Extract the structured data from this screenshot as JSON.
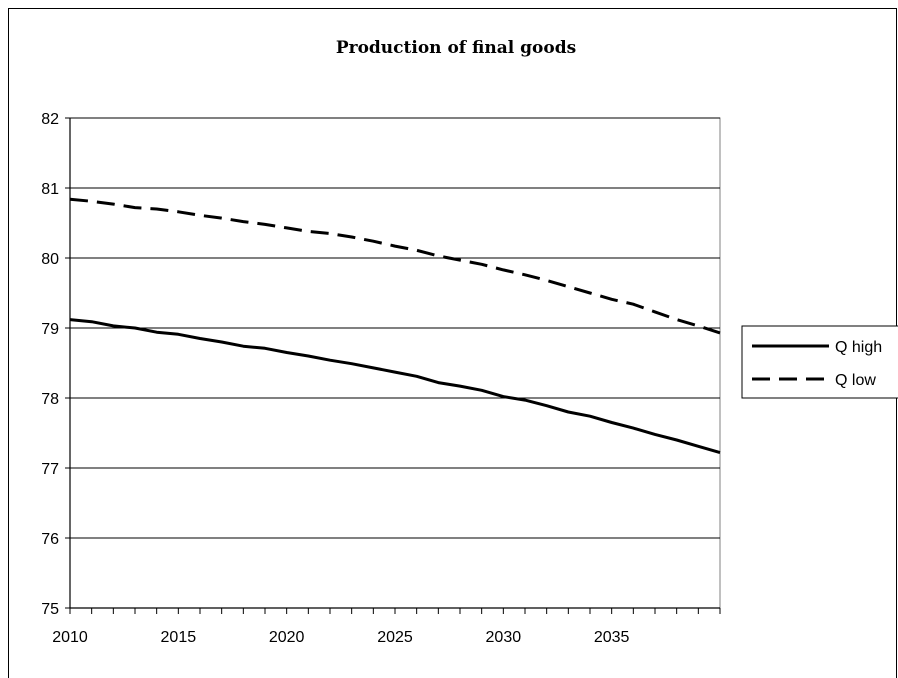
{
  "chart_data": {
    "type": "line",
    "title": "Production of final goods",
    "xlabel": "",
    "ylabel": "",
    "xlim": [
      2010,
      2040
    ],
    "ylim": [
      75,
      82
    ],
    "x_ticks": [
      2010,
      2015,
      2020,
      2025,
      2030,
      2035
    ],
    "y_ticks": [
      75,
      76,
      77,
      78,
      79,
      80,
      81,
      82
    ],
    "grid": "horizontal",
    "legend_position": "right",
    "x": [
      2010,
      2011,
      2012,
      2013,
      2014,
      2015,
      2016,
      2017,
      2018,
      2019,
      2020,
      2021,
      2022,
      2023,
      2024,
      2025,
      2026,
      2027,
      2028,
      2029,
      2030,
      2031,
      2032,
      2033,
      2034,
      2035,
      2036,
      2037,
      2038,
      2039,
      2040
    ],
    "series": [
      {
        "name": "Q high",
        "style": "solid",
        "color": "#000000",
        "values": [
          79.12,
          79.09,
          79.03,
          79.0,
          78.94,
          78.91,
          78.85,
          78.8,
          78.74,
          78.71,
          78.65,
          78.6,
          78.54,
          78.49,
          78.43,
          78.37,
          78.31,
          78.22,
          78.17,
          78.11,
          78.02,
          77.97,
          77.89,
          77.8,
          77.74,
          77.65,
          77.57,
          77.48,
          77.4,
          77.31,
          77.22
        ]
      },
      {
        "name": "Q low",
        "style": "dashed",
        "color": "#000000",
        "values": [
          80.84,
          80.81,
          80.77,
          80.72,
          80.7,
          80.66,
          80.61,
          80.57,
          80.52,
          80.48,
          80.43,
          80.38,
          80.35,
          80.3,
          80.24,
          80.17,
          80.11,
          80.03,
          79.97,
          79.91,
          79.83,
          79.76,
          79.68,
          79.59,
          79.5,
          79.41,
          79.34,
          79.23,
          79.12,
          79.03,
          78.93
        ]
      }
    ]
  }
}
